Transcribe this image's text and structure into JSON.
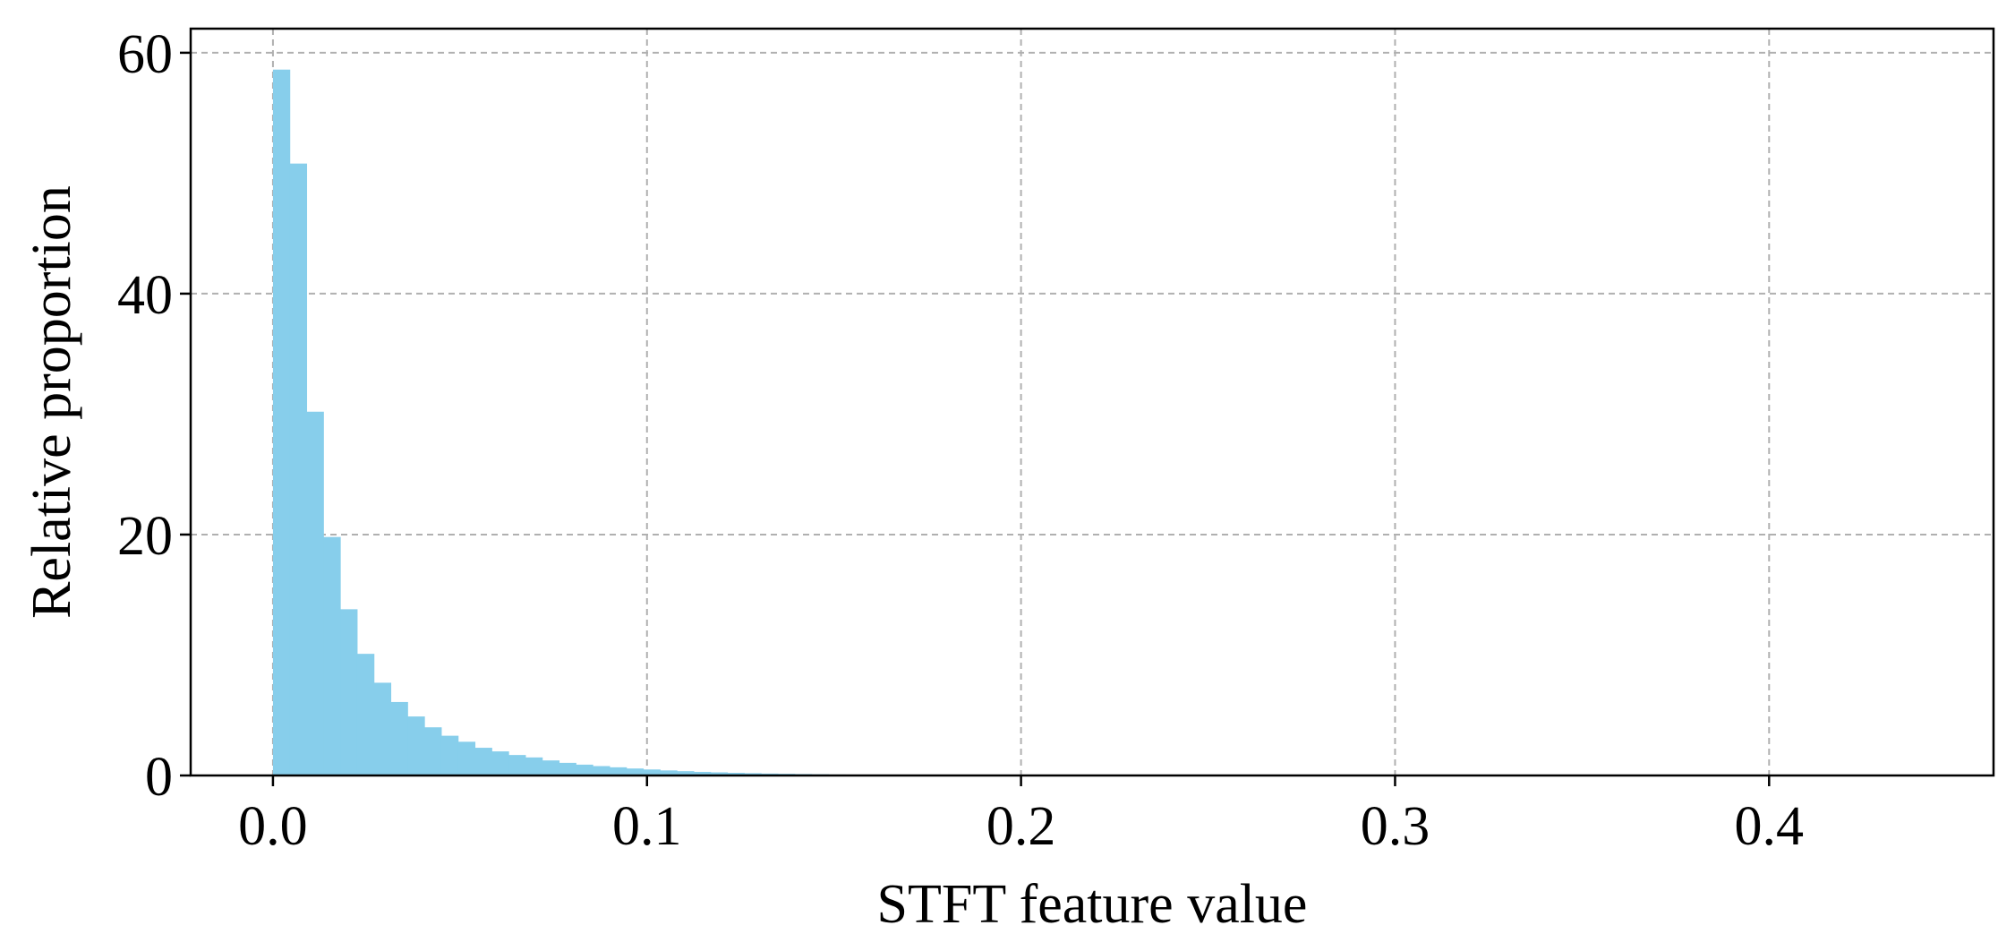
{
  "chart_data": {
    "type": "bar",
    "title": "",
    "xlabel": "STFT feature value",
    "ylabel": "Relative proportion",
    "xlim": [
      -0.022,
      0.46
    ],
    "ylim": [
      0,
      62
    ],
    "xticks": [
      0.0,
      0.1,
      0.2,
      0.3,
      0.4
    ],
    "xtick_labels": [
      "0.0",
      "0.1",
      "0.2",
      "0.3",
      "0.4"
    ],
    "yticks": [
      0,
      20,
      40,
      60
    ],
    "ytick_labels": [
      "0",
      "20",
      "40",
      "60"
    ],
    "grid": true,
    "legend": "none",
    "bar_color": "#87ceeb",
    "bin_width": 0.0045,
    "bin_start": 0.0,
    "values": [
      58.6,
      50.8,
      30.2,
      19.8,
      13.8,
      10.1,
      7.7,
      6.1,
      4.9,
      4.0,
      3.3,
      2.8,
      2.3,
      2.0,
      1.7,
      1.5,
      1.25,
      1.05,
      0.9,
      0.78,
      0.68,
      0.58,
      0.5,
      0.42,
      0.36,
      0.3,
      0.26,
      0.22,
      0.19,
      0.16,
      0.14,
      0.12,
      0.1,
      0.08,
      0.07
    ]
  }
}
